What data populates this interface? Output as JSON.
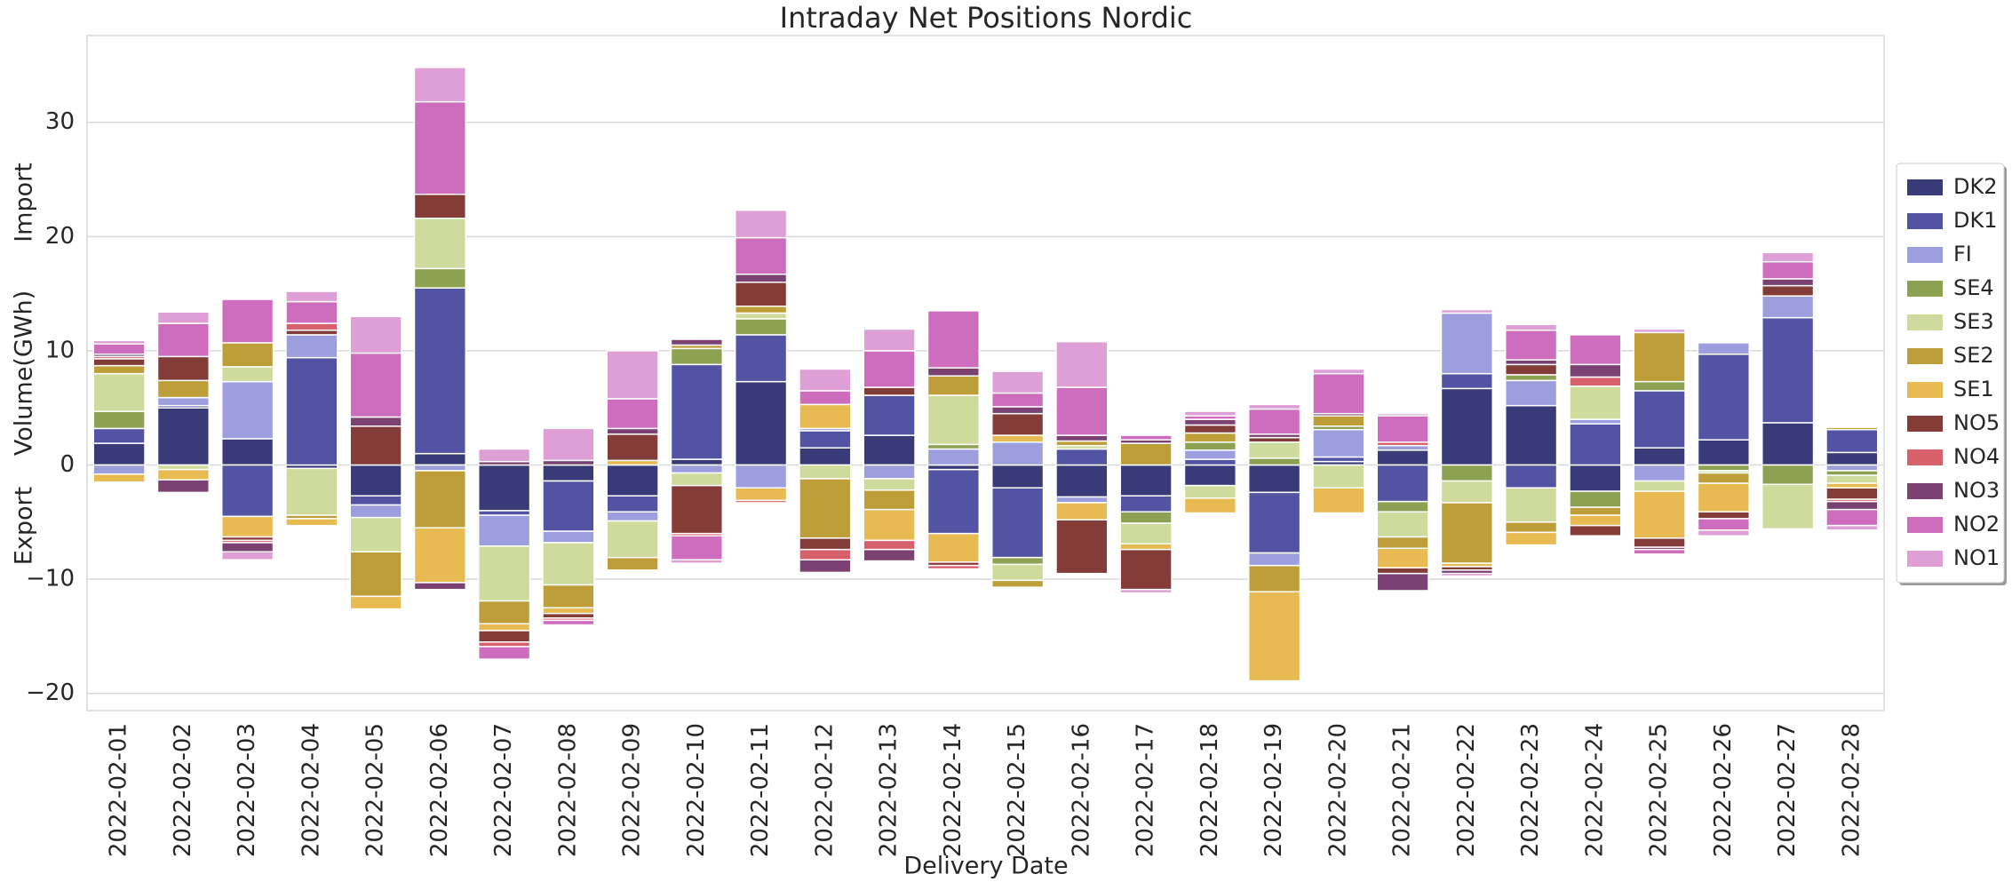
{
  "chart_data": {
    "type": "stacked_bar",
    "title": "Intraday Net Positions Nordic",
    "xlabel": "Delivery Date",
    "ylabel": "Volume(GWh)",
    "annotations": [
      "Import",
      "Export"
    ],
    "categories": [
      "2022-02-01",
      "2022-02-02",
      "2022-02-03",
      "2022-02-04",
      "2022-02-05",
      "2022-02-06",
      "2022-02-07",
      "2022-02-08",
      "2022-02-09",
      "2022-02-10",
      "2022-02-11",
      "2022-02-12",
      "2022-02-13",
      "2022-02-14",
      "2022-02-15",
      "2022-02-16",
      "2022-02-17",
      "2022-02-18",
      "2022-02-19",
      "2022-02-20",
      "2022-02-21",
      "2022-02-22",
      "2022-02-23",
      "2022-02-24",
      "2022-02-25",
      "2022-02-26",
      "2022-02-27",
      "2022-02-28"
    ],
    "series": [
      {
        "name": "DK2",
        "color": "#393b79",
        "values": [
          1.9,
          5,
          2.3,
          -0.3,
          -2.7,
          1.0,
          -4.0,
          -1.4,
          -2.7,
          0.5,
          7.3,
          1.5,
          2.6,
          -0.4,
          -2.0,
          -2.8,
          -2.7,
          -1.8,
          -2.4,
          0.3,
          1.3,
          6.7,
          5.2,
          -2.3,
          1.5,
          2.2,
          3.7,
          1.1
        ]
      },
      {
        "name": "DK1",
        "color": "#5254a3",
        "values": [
          1.3,
          0.2,
          -4.5,
          9.4,
          -0.8,
          14.5,
          -0.4,
          -4.4,
          -1.4,
          8.3,
          4.1,
          1.5,
          3.5,
          -5.6,
          -6.1,
          1.4,
          -1.4,
          0.5,
          -5.3,
          0.4,
          -3.2,
          1.3,
          -2.0,
          3.6,
          5.0,
          7.5,
          9.2,
          2.0
        ]
      },
      {
        "name": "FI",
        "color": "#9c9ede",
        "values": [
          -0.8,
          0.7,
          5.0,
          2.0,
          -1.1,
          -0.5,
          -2.7,
          -1.0,
          -0.8,
          -0.7,
          -2.0,
          0.2,
          -1.2,
          1.4,
          2.0,
          -0.5,
          0,
          0.8,
          -1.1,
          2.4,
          0.4,
          5.3,
          2.2,
          0.4,
          -1.4,
          1.0,
          1.9,
          -0.5
        ]
      },
      {
        "name": "SE4",
        "color": "#8ca252",
        "values": [
          1.5,
          0,
          0,
          0,
          0,
          1.7,
          0,
          0,
          0,
          1.4,
          1.4,
          0,
          0,
          0.4,
          -0.6,
          0,
          -1.0,
          0.7,
          0.6,
          0.3,
          -0.9,
          -1.4,
          0.5,
          -1.4,
          0.8,
          -0.5,
          -1.7,
          -0.4
        ]
      },
      {
        "name": "SE3",
        "color": "#cedb9c",
        "values": [
          3.3,
          -0.4,
          1.3,
          -4.1,
          -3.0,
          4.4,
          -4.8,
          -3.7,
          -3.2,
          -1.1,
          0.5,
          -1.2,
          -1.0,
          4.3,
          -1.4,
          0.3,
          -1.8,
          -1.1,
          1.4,
          -2.0,
          -2.2,
          -1.9,
          -3.0,
          2.9,
          -0.9,
          -0.2,
          -3.9,
          -0.7
        ]
      },
      {
        "name": "SE2",
        "color": "#bd9e39",
        "values": [
          0.7,
          1.5,
          2.1,
          -0.3,
          -3.9,
          -5.0,
          -2.0,
          -2.0,
          -1.1,
          0.3,
          0.6,
          -5.2,
          -1.7,
          1.7,
          -0.6,
          0.4,
          1.9,
          0.8,
          -2.3,
          0.9,
          -1.0,
          -5.3,
          -0.9,
          -0.7,
          4.3,
          -0.9,
          0,
          0.2
        ]
      },
      {
        "name": "SE1",
        "color": "#e7ba52",
        "values": [
          -0.7,
          -0.9,
          -1.8,
          -0.6,
          -1.1,
          -4.8,
          -0.6,
          -0.5,
          0.4,
          0,
          -1.1,
          2.1,
          -2.7,
          -2.5,
          0.6,
          -1.5,
          -0.5,
          -1.3,
          -7.8,
          -2.2,
          -1.7,
          -0.3,
          -1.1,
          -0.9,
          -4.1,
          -2.5,
          -0.1,
          -0.4
        ]
      },
      {
        "name": "NO5",
        "color": "#843c39",
        "values": [
          0.6,
          2.1,
          -0.3,
          0.4,
          3.4,
          2.1,
          -1.0,
          -0.4,
          2.3,
          -4.2,
          2.1,
          -1.0,
          0.7,
          -0.3,
          1.9,
          -4.7,
          -3.5,
          0.7,
          0.4,
          0,
          -0.5,
          -0.3,
          0.9,
          -0.9,
          -0.8,
          -0.6,
          0.9,
          -1.0
        ]
      },
      {
        "name": "NO4",
        "color": "#d6616b",
        "values": [
          0.2,
          0,
          -0.2,
          0.6,
          0,
          0,
          -0.4,
          -0.2,
          0,
          -0.2,
          -0.2,
          -0.9,
          -0.8,
          -0.3,
          0,
          0,
          0,
          0,
          0,
          0,
          0.3,
          0,
          0,
          0.8,
          0,
          0,
          0,
          -0.2
        ]
      },
      {
        "name": "NO3",
        "color": "#7b4173",
        "values": [
          0.2,
          -1.1,
          -0.8,
          0,
          0.8,
          -0.6,
          0.3,
          0.4,
          0.5,
          0.5,
          0.7,
          -1.1,
          -1.0,
          0.7,
          0.6,
          0.5,
          0.3,
          0.5,
          0.3,
          0.2,
          -1.5,
          -0.3,
          0.4,
          1.1,
          -0.2,
          0,
          0.6,
          -0.7
        ]
      },
      {
        "name": "NO2",
        "color": "#ce6dbd",
        "values": [
          0.9,
          2.9,
          3.8,
          1.9,
          5.6,
          8.1,
          -1.1,
          -0.4,
          2.6,
          -2.1,
          3.2,
          1.2,
          3.2,
          5.0,
          1.2,
          4.2,
          0.4,
          0.3,
          2.2,
          3.5,
          2.3,
          -0.2,
          2.6,
          2.6,
          -0.4,
          -1.0,
          1.5,
          -1.4
        ]
      },
      {
        "name": "NO1",
        "color": "#de9ed6",
        "values": [
          0.3,
          1.0,
          -0.7,
          0.9,
          3.2,
          3.0,
          1.1,
          2.8,
          4.2,
          -0.3,
          2.4,
          1.9,
          1.9,
          0,
          1.9,
          4.0,
          -0.3,
          0.4,
          0.4,
          0.4,
          0.2,
          0.3,
          0.5,
          0,
          0.3,
          -0.5,
          0.8,
          -0.4
        ]
      }
    ],
    "ylim": [
      -21.5,
      37.6
    ],
    "yticks": [
      {
        "value": -20,
        "label": "−20"
      },
      {
        "value": -10,
        "label": "−10"
      },
      0,
      10,
      20,
      30
    ],
    "grid": true,
    "legend": "center right"
  }
}
